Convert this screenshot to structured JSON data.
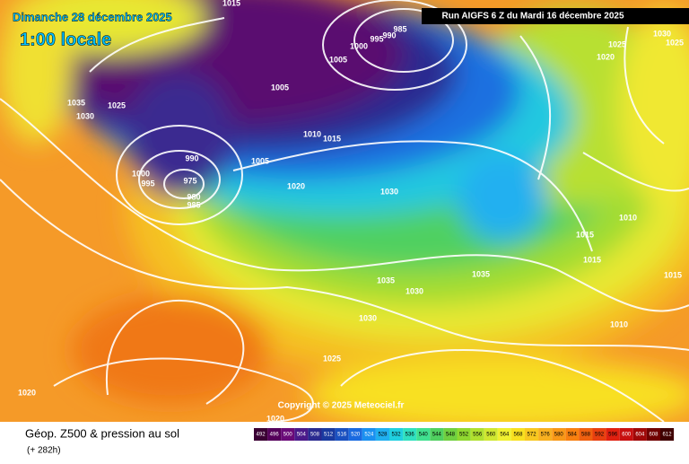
{
  "header": {
    "date": "Dimanche 28 décembre 2025",
    "time": "1:00 locale",
    "run": "Run AIGFS 6 Z du Mardi 16 décembre 2025"
  },
  "copyright": "Copyright © 2025 Meteociel.fr",
  "footer": {
    "title": "Géop. Z500 & pression au sol",
    "lead": "(+ 282h)"
  },
  "isobar_labels": [
    "1015",
    "1035",
    "1030",
    "1025",
    "1005",
    "1005",
    "1000",
    "995",
    "990",
    "985",
    "1010",
    "1015",
    "1005",
    "990",
    "1000",
    "995",
    "975",
    "980",
    "985",
    "1020",
    "1030",
    "1035",
    "1035",
    "1030",
    "1030",
    "1025",
    "1020",
    "1020",
    "1025",
    "1020",
    "1030",
    "1025",
    "1010",
    "1015",
    "1015",
    "1015",
    "1010"
  ],
  "scale": {
    "values": [
      492,
      496,
      500,
      504,
      508,
      512,
      516,
      520,
      524,
      528,
      532,
      536,
      540,
      544,
      548,
      552,
      556,
      560,
      564,
      568,
      572,
      576,
      580,
      584,
      588,
      592,
      596,
      600,
      604,
      608,
      612
    ],
    "colors": [
      "#3a0033",
      "#55005a",
      "#6a0a78",
      "#4a1a8a",
      "#2a2a90",
      "#1a3aa0",
      "#1a50c0",
      "#1a6ae0",
      "#1a90f0",
      "#20b0f0",
      "#20d0e0",
      "#30e0c0",
      "#40e090",
      "#50d060",
      "#70d040",
      "#90d830",
      "#b0e030",
      "#d0e830",
      "#f0f030",
      "#f8e020",
      "#f8c820",
      "#f8b020",
      "#f89818",
      "#f88010",
      "#f06010",
      "#e84010",
      "#e02010",
      "#c81010",
      "#a00808",
      "#700000",
      "#400000"
    ]
  }
}
